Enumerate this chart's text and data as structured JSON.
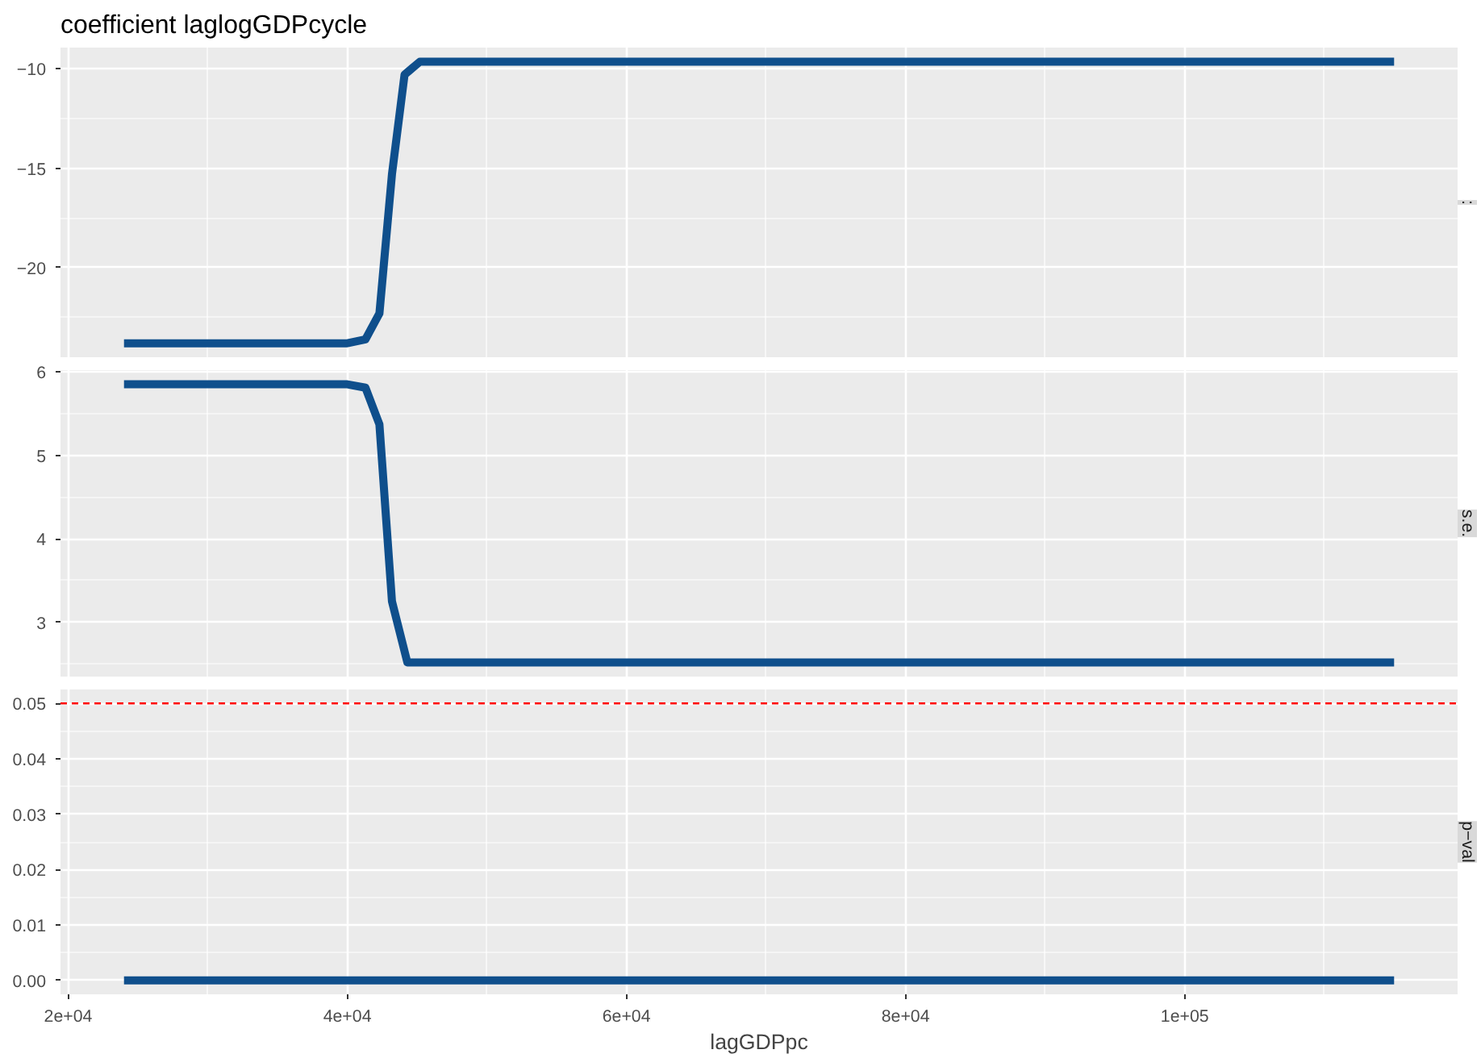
{
  "chart_data": [
    {
      "type": "line",
      "title": "coefficient laglogGDPcycle",
      "annotations": [
        ":"
      ],
      "x": [
        24000,
        40000,
        41300,
        42300,
        43200,
        44100,
        45200,
        115000
      ],
      "series": [
        {
          "color": "#0f4f8c",
          "values": [
            -23.8,
            -23.8,
            -23.6,
            -22.3,
            -15.3,
            -10.3,
            -9.65,
            -9.65
          ]
        }
      ],
      "xlim": [
        19450,
        119550
      ],
      "ylim": [
        -24.5,
        -8.94
      ],
      "yticks": [
        {
          "value": -10,
          "label": "−10"
        },
        {
          "value": -15,
          "label": "−15"
        },
        {
          "value": -20,
          "label": "−20"
        }
      ],
      "tick_labels": "y",
      "grid": true,
      "line_style": "solid"
    },
    {
      "type": "line",
      "annotations": [
        "s.e."
      ],
      "x": [
        24000,
        40000,
        41300,
        42300,
        43200,
        44300,
        115000
      ],
      "series": [
        {
          "color": "#0f4f8c",
          "values": [
            5.85,
            5.85,
            5.81,
            5.37,
            3.25,
            2.52,
            2.52
          ]
        }
      ],
      "xlim": [
        19450,
        119550
      ],
      "ylim": [
        2.35,
        6.02
      ],
      "yticks": [
        3,
        4,
        5,
        6
      ],
      "tick_labels": "y",
      "grid": true,
      "line_style": "solid"
    },
    {
      "type": "line",
      "xlabel": "lagGDPpc",
      "annotations": [
        "p−val"
      ],
      "x": [
        24000,
        115000
      ],
      "series": [
        {
          "color": "#0f4f8c",
          "values": [
            0.0,
            0.0
          ]
        }
      ],
      "xlim": [
        19450,
        119550
      ],
      "ylim": [
        -0.0025,
        0.0525
      ],
      "xticks": [
        {
          "value": 20000,
          "label": "2e+04"
        },
        {
          "value": 40000,
          "label": "4e+04"
        },
        {
          "value": 60000,
          "label": "6e+04"
        },
        {
          "value": 80000,
          "label": "8e+04"
        },
        {
          "value": 100000,
          "label": "1e+05"
        }
      ],
      "yticks": [
        {
          "value": 0,
          "label": "0.00"
        },
        {
          "value": 0.01,
          "label": "0.01"
        },
        {
          "value": 0.02,
          "label": "0.02"
        },
        {
          "value": 0.03,
          "label": "0.03"
        },
        {
          "value": 0.04,
          "label": "0.04"
        },
        {
          "value": 0.05,
          "label": "0.05"
        }
      ],
      "ref_lines": [
        {
          "axis": "y",
          "value": 0.05,
          "color": "#ff0000",
          "line_style": "dashed"
        }
      ],
      "grid": true,
      "line_style": "solid"
    }
  ]
}
